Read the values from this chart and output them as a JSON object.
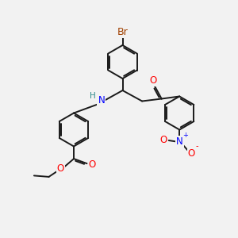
{
  "bg_color": "#f2f2f2",
  "bond_color": "#1a1a1a",
  "bond_width": 1.4,
  "atom_colors": {
    "Br": "#a04000",
    "O": "#ff0000",
    "N": "#0000ff",
    "H": "#2e8b8b",
    "C": "#1a1a1a"
  },
  "font_size": 8.5,
  "fig_size": [
    3.0,
    3.0
  ],
  "dpi": 100,
  "xlim": [
    0,
    10
  ],
  "ylim": [
    0,
    10
  ]
}
